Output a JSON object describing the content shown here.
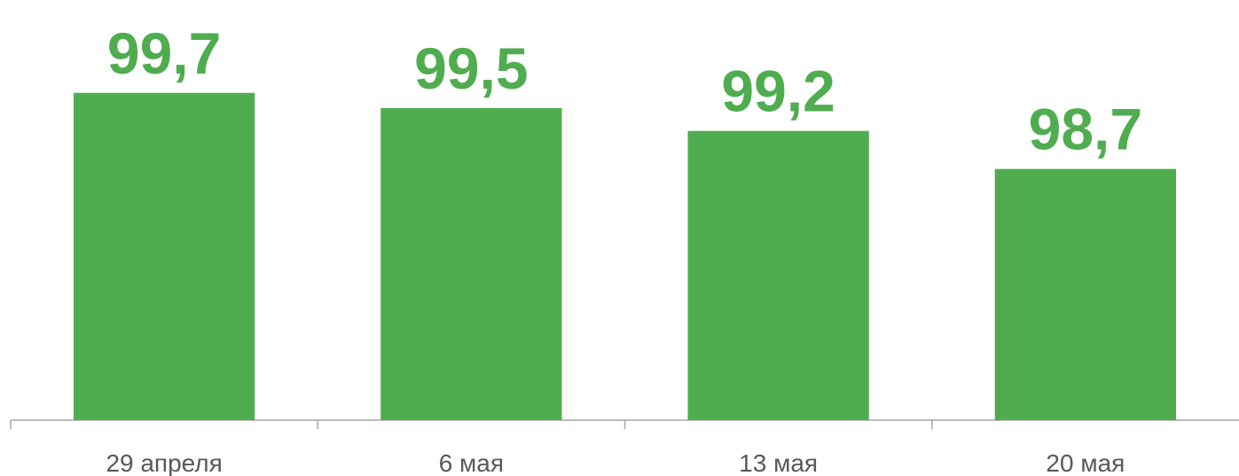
{
  "chart_data": {
    "type": "bar",
    "categories": [
      "29 апреля",
      "6 мая",
      "13 мая",
      "20 мая"
    ],
    "values": [
      99.7,
      99.5,
      99.2,
      98.7
    ],
    "value_labels": [
      "99,7",
      "99,5",
      "99,2",
      "98,7"
    ],
    "color": "#4fad4f",
    "ylim": [
      95.4,
      100
    ]
  }
}
